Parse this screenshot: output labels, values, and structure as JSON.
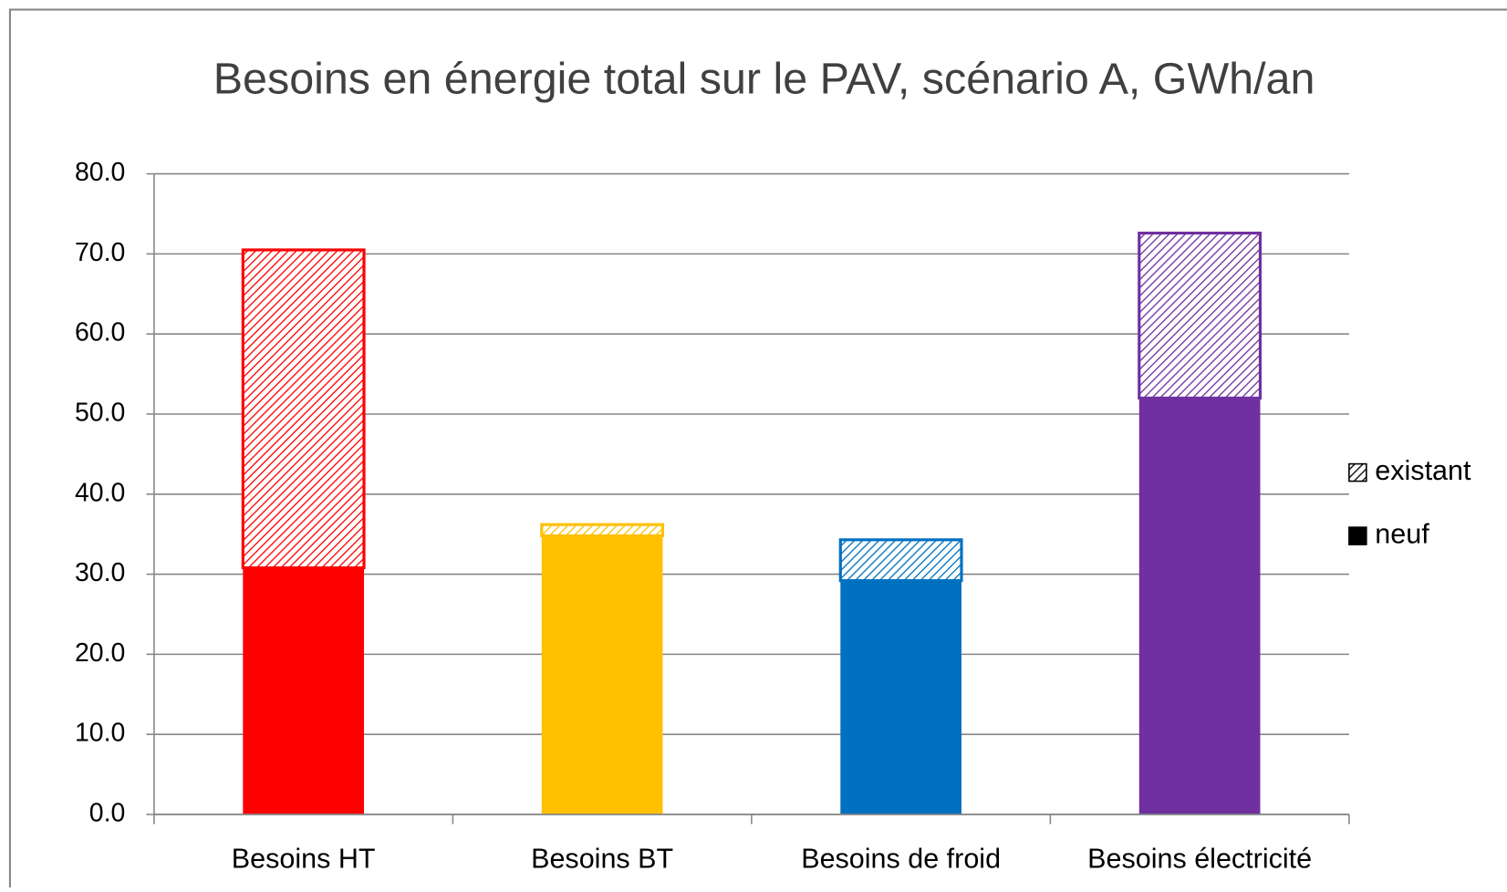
{
  "chart_data": {
    "type": "stacked_bar",
    "title": "Besoins en énergie total sur le PAV, scénario A, GWh/an",
    "categories": [
      "Besoins HT",
      "Besoins BT",
      "Besoins de froid",
      "Besoins électricité"
    ],
    "colors": [
      "#ff0000",
      "#ffc000",
      "#0070c0",
      "#7030a0"
    ],
    "series": [
      {
        "name": "neuf",
        "color": "#000000",
        "values": [
          30.8,
          34.8,
          29.2,
          52.0
        ]
      },
      {
        "name": "existant",
        "color": "#000000",
        "hatched": true,
        "values": [
          39.7,
          1.4,
          5.1,
          20.6
        ]
      }
    ],
    "ylim": [
      0,
      80
    ],
    "yticks": [
      {
        "value": 0,
        "label": "0.0"
      },
      {
        "value": 10,
        "label": "10.0"
      },
      {
        "value": 20,
        "label": "20.0"
      },
      {
        "value": 30,
        "label": "30.0"
      },
      {
        "value": 40,
        "label": "40.0"
      },
      {
        "value": 50,
        "label": "50.0"
      },
      {
        "value": 60,
        "label": "60.0"
      },
      {
        "value": 70,
        "label": "70.0"
      },
      {
        "value": 80,
        "label": "80.0"
      }
    ],
    "grid": true,
    "legend": "right"
  }
}
